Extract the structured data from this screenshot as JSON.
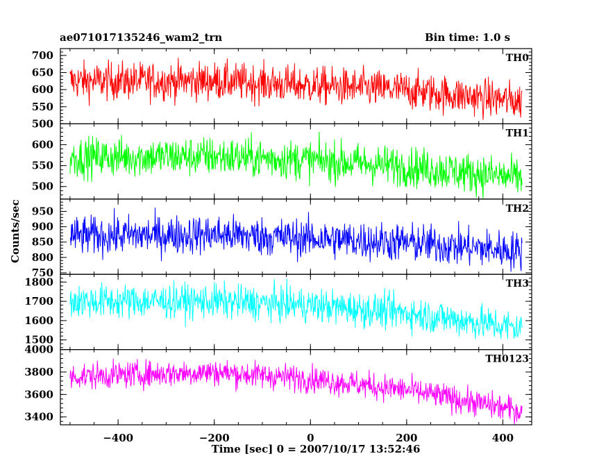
{
  "chart_data": {
    "type": "line",
    "title": "ae071017135246_wam2_trn",
    "bin_time": "Bin time: 1.0 s",
    "xlabel": "Time [sec] 0 = 2007/10/17 13:52:46",
    "ylabel": "Counts/sec",
    "xlim": [
      -520,
      460
    ],
    "x_range": [
      -500,
      440
    ],
    "x_ticks": [
      -400,
      -200,
      0,
      200,
      400
    ],
    "grid": false,
    "panels": [
      {
        "name": "TH0",
        "color": "#ff0000",
        "ylim": [
          500,
          720
        ],
        "y_ticks": [
          500,
          550,
          600,
          650,
          700
        ],
        "trend_x": [
          -500,
          -200,
          0,
          200,
          440
        ],
        "trend_y": [
          625,
          625,
          612,
          598,
          565
        ],
        "noise": 28
      },
      {
        "name": "TH1",
        "color": "#00ff00",
        "ylim": [
          470,
          650
        ],
        "y_ticks": [
          500,
          550,
          600
        ],
        "trend_x": [
          -500,
          -200,
          0,
          200,
          440
        ],
        "trend_y": [
          570,
          572,
          563,
          548,
          520
        ],
        "noise": 24
      },
      {
        "name": "TH2",
        "color": "#0000ff",
        "ylim": [
          745,
          990
        ],
        "y_ticks": [
          750,
          800,
          850,
          900,
          950
        ],
        "trend_x": [
          -500,
          -200,
          0,
          200,
          440
        ],
        "trend_y": [
          870,
          875,
          862,
          848,
          820
        ],
        "noise": 32
      },
      {
        "name": "TH3",
        "color": "#00ffff",
        "ylim": [
          1450,
          1840
        ],
        "y_ticks": [
          1500,
          1600,
          1700,
          1800
        ],
        "trend_x": [
          -500,
          -200,
          0,
          200,
          440
        ],
        "trend_y": [
          1700,
          1700,
          1680,
          1640,
          1560
        ],
        "noise": 45
      },
      {
        "name": "TH0123",
        "color": "#ff00ff",
        "ylim": [
          3330,
          4000
        ],
        "y_ticks": [
          3400,
          3600,
          3800,
          4000
        ],
        "trend_x": [
          -500,
          -200,
          0,
          200,
          440
        ],
        "trend_y": [
          3760,
          3800,
          3740,
          3640,
          3450
        ],
        "noise": 60
      }
    ]
  }
}
